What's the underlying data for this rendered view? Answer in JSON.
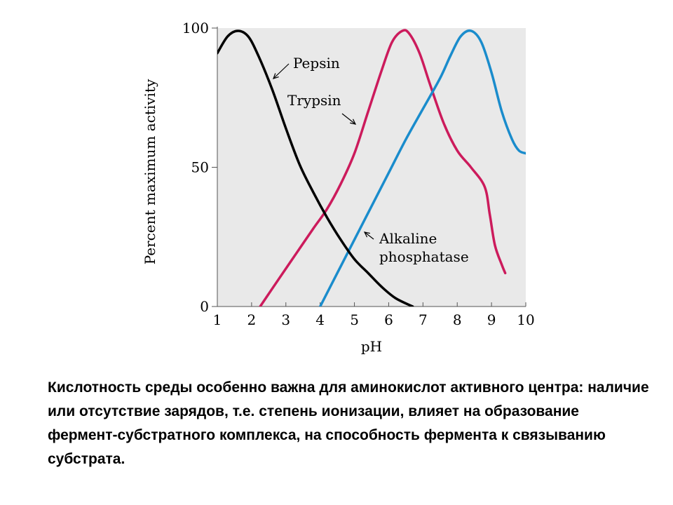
{
  "chart_data": {
    "type": "line",
    "xlabel": "pH",
    "ylabel": "Percent maximum activity",
    "xlim": [
      1,
      10
    ],
    "ylim": [
      0,
      100
    ],
    "x_ticks": [
      "1",
      "2",
      "3",
      "4",
      "5",
      "6",
      "7",
      "8",
      "9",
      "10"
    ],
    "y_ticks": [
      "0",
      "50",
      "100"
    ],
    "y_tick_values": [
      0,
      50,
      100
    ],
    "grid": false,
    "plot_background": "#e9e9e9",
    "series": [
      {
        "name": "Pepsin",
        "color": "#000000",
        "x": [
          1.0,
          1.3,
          1.6,
          1.9,
          2.2,
          2.6,
          3.0,
          3.4,
          3.8,
          4.2,
          4.6,
          5.0,
          5.4,
          5.8,
          6.2,
          6.7
        ],
        "y": [
          91,
          97,
          99,
          97,
          90,
          78,
          64,
          51,
          41,
          32,
          24,
          17,
          12,
          7,
          3,
          0
        ]
      },
      {
        "name": "Trypsin",
        "color": "#cc1b5c",
        "x": [
          2.25,
          2.8,
          3.3,
          3.8,
          4.2,
          4.6,
          5.0,
          5.4,
          5.8,
          6.1,
          6.4,
          6.6,
          6.9,
          7.2,
          7.6,
          8.0,
          8.4,
          8.8,
          8.95,
          9.1,
          9.3,
          9.4
        ],
        "y": [
          0,
          10,
          19,
          28,
          35,
          44,
          55,
          70,
          85,
          95,
          99,
          98,
          91,
          80,
          66,
          56,
          50,
          43,
          33,
          22,
          15,
          12
        ]
      },
      {
        "name": "Alkaline phosphatase",
        "color": "#1a8ccc",
        "x": [
          4.0,
          4.5,
          5.0,
          5.5,
          6.0,
          6.5,
          7.0,
          7.5,
          7.8,
          8.1,
          8.4,
          8.7,
          9.0,
          9.3,
          9.6,
          9.8,
          10.0
        ],
        "y": [
          0,
          12,
          24,
          36,
          48,
          60,
          71,
          82,
          90,
          97,
          99,
          95,
          84,
          70,
          60,
          56,
          55
        ]
      }
    ],
    "annotations": [
      {
        "id": "pepsin",
        "lines": [
          "Pepsin"
        ],
        "series": "Pepsin"
      },
      {
        "id": "trypsin",
        "lines": [
          "Trypsin"
        ],
        "series": "Trypsin"
      },
      {
        "id": "alkaline",
        "lines": [
          "Alkaline",
          "phosphatase"
        ],
        "series": "Alkaline phosphatase"
      }
    ]
  },
  "caption": "Кислотность среды особенно важна для аминокислот активного центра: наличие или отсутствие зарядов, т.е. степень ионизации,  влияет на образование фермент-субстратного комплекса, на способность фермента к связыванию субстрата."
}
